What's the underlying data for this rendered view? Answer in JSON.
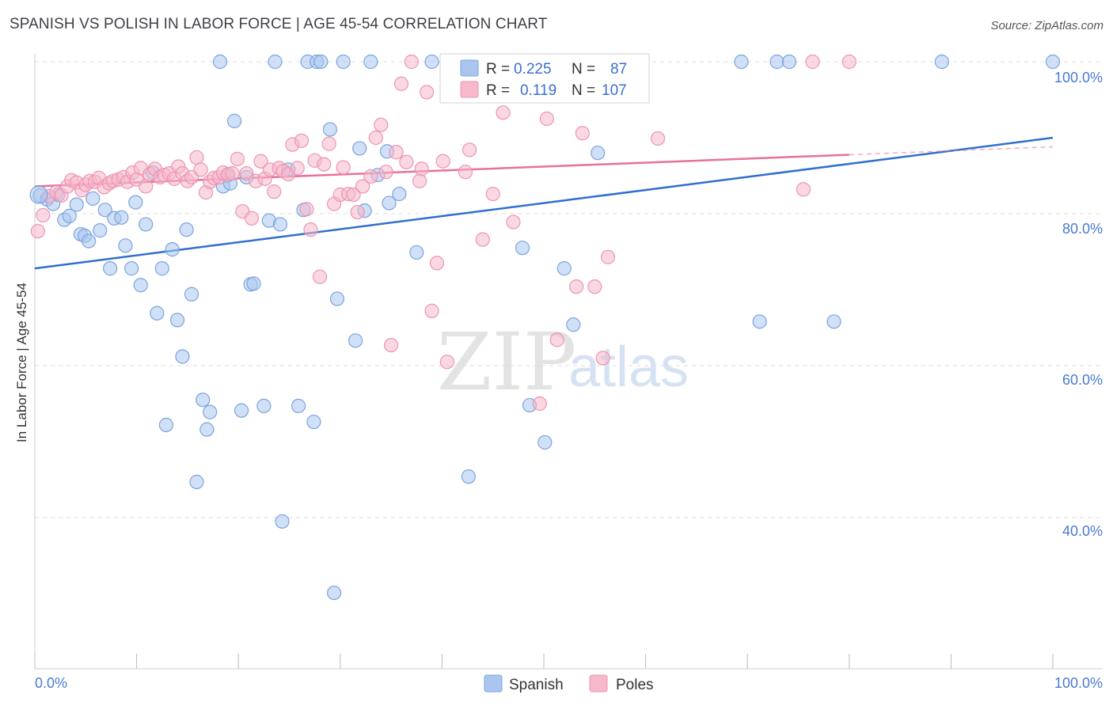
{
  "title": "SPANISH VS POLISH IN LABOR FORCE | AGE 45-54 CORRELATION CHART",
  "source": "Source: ZipAtlas.com",
  "watermark": {
    "zip": "ZIP",
    "atlas": "atlas"
  },
  "legend": {
    "rows": [
      {
        "r_label": "R =",
        "r_value": "0.225",
        "n_label": "N =",
        "n_value": "87"
      },
      {
        "r_label": "R =",
        "r_value": "0.119",
        "n_label": "N =",
        "n_value": "107"
      }
    ]
  },
  "bottom_legend": [
    "Spanish",
    "Poles"
  ],
  "colors": {
    "spanish_fill": "#aac6ef",
    "spanish_stroke": "#7aa4e0",
    "spanish_line": "#2f6fcf",
    "poles_fill": "#f6b8cb",
    "poles_stroke": "#ee93b1",
    "poles_line": "#e8709a",
    "tick_text": "#4a7bd0",
    "grid": "#dddddd"
  },
  "chart_data": {
    "type": "scatter",
    "title": "SPANISH VS POLISH IN LABOR FORCE | AGE 45-54 CORRELATION CHART",
    "xlabel": "",
    "ylabel": "In Labor Force | Age 45-54",
    "xlim": [
      0,
      100
    ],
    "ylim": [
      20,
      102
    ],
    "x_tick_labels": [
      "0.0%",
      "100.0%"
    ],
    "y_ticks": [
      {
        "value": 100,
        "label": "100.0%"
      },
      {
        "value": 80,
        "label": "80.0%"
      },
      {
        "value": 60,
        "label": "60.0%"
      },
      {
        "value": 40,
        "label": "40.0%"
      }
    ],
    "grid": true,
    "legend_position": "top-center",
    "series": [
      {
        "name": "Spanish",
        "r": 0.225,
        "n": 87,
        "trend": {
          "x": [
            0,
            100
          ],
          "y": [
            72.8,
            90.0
          ],
          "dashed_from": null
        },
        "points": [
          [
            0.5,
            82.4
          ],
          [
            1.2,
            81.9
          ],
          [
            1.8,
            81.3
          ],
          [
            2.3,
            82.5
          ],
          [
            2.9,
            79.2
          ],
          [
            3.4,
            79.7
          ],
          [
            4.1,
            81.2
          ],
          [
            4.5,
            77.3
          ],
          [
            4.9,
            77.1
          ],
          [
            5.3,
            76.4
          ],
          [
            5.7,
            82.0
          ],
          [
            6.4,
            77.8
          ],
          [
            6.9,
            80.5
          ],
          [
            7.4,
            72.8
          ],
          [
            7.8,
            79.4
          ],
          [
            8.5,
            79.5
          ],
          [
            8.9,
            75.8
          ],
          [
            9.5,
            72.8
          ],
          [
            9.9,
            81.5
          ],
          [
            10.4,
            70.6
          ],
          [
            10.9,
            78.6
          ],
          [
            11.6,
            85.4
          ],
          [
            12.0,
            66.9
          ],
          [
            12.5,
            72.8
          ],
          [
            12.9,
            52.2
          ],
          [
            13.5,
            75.3
          ],
          [
            14.0,
            66.0
          ],
          [
            14.5,
            61.2
          ],
          [
            14.9,
            77.9
          ],
          [
            15.4,
            69.4
          ],
          [
            15.9,
            44.7
          ],
          [
            16.5,
            55.5
          ],
          [
            16.9,
            51.6
          ],
          [
            17.2,
            53.9
          ],
          [
            18.2,
            100.0
          ],
          [
            18.5,
            83.6
          ],
          [
            18.9,
            85.0
          ],
          [
            19.2,
            84.0
          ],
          [
            19.6,
            92.2
          ],
          [
            20.3,
            54.1
          ],
          [
            20.8,
            84.8
          ],
          [
            21.2,
            70.7
          ],
          [
            21.5,
            70.8
          ],
          [
            22.5,
            54.7
          ],
          [
            23.0,
            79.1
          ],
          [
            23.6,
            100.0
          ],
          [
            24.1,
            78.6
          ],
          [
            24.3,
            39.5
          ],
          [
            24.9,
            85.8
          ],
          [
            25.9,
            54.7
          ],
          [
            26.4,
            80.5
          ],
          [
            26.8,
            100.0
          ],
          [
            27.4,
            52.6
          ],
          [
            27.7,
            100.0
          ],
          [
            28.1,
            100.0
          ],
          [
            29.0,
            91.1
          ],
          [
            29.4,
            30.1
          ],
          [
            29.7,
            68.8
          ],
          [
            30.3,
            100.0
          ],
          [
            31.5,
            63.3
          ],
          [
            31.9,
            88.6
          ],
          [
            32.4,
            80.4
          ],
          [
            33.0,
            100.0
          ],
          [
            33.7,
            85.1
          ],
          [
            34.6,
            88.2
          ],
          [
            34.8,
            81.4
          ],
          [
            35.8,
            82.6
          ],
          [
            37.5,
            74.9
          ],
          [
            39.0,
            100.0
          ],
          [
            42.0,
            100.0
          ],
          [
            42.6,
            45.4
          ],
          [
            47.9,
            75.5
          ],
          [
            48.6,
            54.8
          ],
          [
            50.1,
            49.9
          ],
          [
            52.0,
            72.8
          ],
          [
            52.6,
            100.0
          ],
          [
            52.9,
            65.4
          ],
          [
            55.3,
            88.0
          ],
          [
            56.4,
            100.0
          ],
          [
            58.0,
            100.0
          ],
          [
            69.4,
            100.0
          ],
          [
            71.2,
            65.8
          ],
          [
            72.9,
            100.0
          ],
          [
            74.1,
            100.0
          ],
          [
            78.5,
            65.8
          ],
          [
            89.1,
            100.0
          ],
          [
            100.0,
            100.0
          ]
        ]
      },
      {
        "name": "Poles",
        "r": 0.119,
        "n": 107,
        "trend": {
          "x": [
            0,
            100
          ],
          "y": [
            83.6,
            88.8
          ],
          "dashed_from": 80
        },
        "points": [
          [
            0.3,
            77.7
          ],
          [
            0.8,
            79.8
          ],
          [
            1.4,
            82.3
          ],
          [
            2.1,
            82.8
          ],
          [
            2.6,
            82.4
          ],
          [
            3.2,
            83.6
          ],
          [
            3.6,
            84.4
          ],
          [
            4.1,
            84.1
          ],
          [
            4.6,
            83.1
          ],
          [
            5.0,
            83.8
          ],
          [
            5.4,
            84.3
          ],
          [
            5.9,
            84.2
          ],
          [
            6.3,
            84.7
          ],
          [
            6.8,
            83.5
          ],
          [
            7.3,
            84.0
          ],
          [
            7.7,
            84.3
          ],
          [
            8.2,
            84.5
          ],
          [
            8.7,
            84.8
          ],
          [
            9.1,
            84.2
          ],
          [
            9.6,
            85.4
          ],
          [
            10.0,
            84.5
          ],
          [
            10.4,
            86.0
          ],
          [
            10.9,
            83.6
          ],
          [
            11.3,
            85.2
          ],
          [
            11.8,
            85.9
          ],
          [
            12.3,
            84.8
          ],
          [
            12.7,
            85.1
          ],
          [
            13.2,
            85.3
          ],
          [
            13.7,
            84.6
          ],
          [
            14.1,
            86.2
          ],
          [
            14.5,
            85.3
          ],
          [
            15.0,
            84.3
          ],
          [
            15.4,
            84.8
          ],
          [
            15.9,
            87.4
          ],
          [
            16.3,
            85.8
          ],
          [
            16.8,
            82.8
          ],
          [
            17.2,
            84.2
          ],
          [
            17.6,
            84.7
          ],
          [
            18.1,
            84.8
          ],
          [
            18.5,
            85.4
          ],
          [
            19.0,
            85.2
          ],
          [
            19.4,
            85.3
          ],
          [
            19.9,
            87.2
          ],
          [
            20.4,
            80.3
          ],
          [
            20.8,
            85.3
          ],
          [
            21.3,
            79.4
          ],
          [
            21.7,
            84.3
          ],
          [
            22.2,
            86.9
          ],
          [
            22.6,
            84.6
          ],
          [
            23.1,
            85.8
          ],
          [
            23.5,
            82.9
          ],
          [
            24.0,
            86.0
          ],
          [
            24.4,
            85.6
          ],
          [
            24.9,
            85.2
          ],
          [
            25.3,
            89.1
          ],
          [
            25.8,
            86.0
          ],
          [
            26.2,
            89.6
          ],
          [
            26.7,
            80.6
          ],
          [
            27.1,
            77.9
          ],
          [
            27.5,
            87.0
          ],
          [
            28.0,
            71.7
          ],
          [
            28.4,
            86.5
          ],
          [
            28.9,
            89.2
          ],
          [
            29.4,
            81.3
          ],
          [
            30.0,
            82.5
          ],
          [
            30.3,
            86.1
          ],
          [
            30.8,
            82.6
          ],
          [
            31.3,
            82.5
          ],
          [
            31.7,
            80.2
          ],
          [
            32.2,
            83.6
          ],
          [
            33.0,
            84.9
          ],
          [
            33.5,
            90.0
          ],
          [
            34.0,
            91.7
          ],
          [
            34.5,
            85.5
          ],
          [
            35.0,
            62.7
          ],
          [
            35.5,
            88.1
          ],
          [
            36.0,
            97.1
          ],
          [
            36.5,
            86.8
          ],
          [
            37.0,
            100.0
          ],
          [
            38.0,
            85.9
          ],
          [
            38.5,
            96.0
          ],
          [
            39.0,
            67.2
          ],
          [
            39.5,
            73.5
          ],
          [
            40.1,
            86.9
          ],
          [
            40.5,
            60.5
          ],
          [
            41.0,
            100.0
          ],
          [
            42.3,
            85.5
          ],
          [
            42.7,
            88.4
          ],
          [
            44.0,
            76.6
          ],
          [
            45.0,
            82.6
          ],
          [
            46.0,
            93.3
          ],
          [
            47.0,
            78.9
          ],
          [
            48.5,
            100.0
          ],
          [
            49.6,
            55.0
          ],
          [
            50.3,
            92.5
          ],
          [
            51.0,
            100.0
          ],
          [
            51.3,
            63.4
          ],
          [
            53.2,
            70.4
          ],
          [
            53.8,
            90.6
          ],
          [
            55.0,
            70.4
          ],
          [
            55.8,
            61.0
          ],
          [
            56.3,
            74.3
          ],
          [
            61.2,
            89.9
          ],
          [
            75.5,
            83.2
          ],
          [
            76.4,
            100.0
          ],
          [
            80.0,
            100.0
          ],
          [
            37.8,
            84.3
          ]
        ]
      }
    ]
  }
}
